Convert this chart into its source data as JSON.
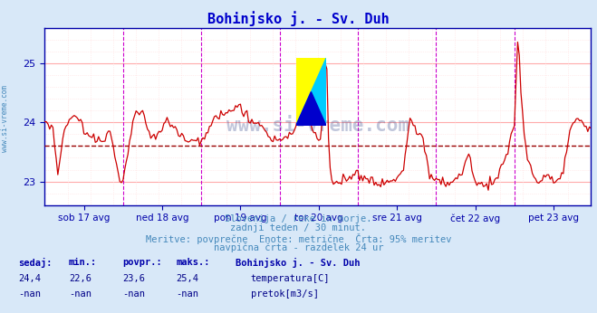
{
  "title": "Bohinjsko j. - Sv. Duh",
  "bg_color": "#d8e8f8",
  "plot_bg_color": "#ffffff",
  "line_color": "#cc0000",
  "avg_line_color": "#990000",
  "avg_line_value": 23.6,
  "grid_color_major": "#ffaaaa",
  "grid_color_minor": "#ffdddd",
  "vline_color_day": "#cc00cc",
  "ylim": [
    22.6,
    25.6
  ],
  "yticks": [
    23,
    24,
    25
  ],
  "title_color": "#0000cc",
  "axis_color": "#0000aa",
  "tick_color": "#0000aa",
  "bottom_text_color": "#4488bb",
  "bottom_text1": "Slovenija / reke in morje.",
  "bottom_text2": "zadnji teden / 30 minut.",
  "bottom_text3": "Meritve: povprečne  Enote: metrične  Črta: 95% meritev",
  "bottom_text4": "navpična črta - razdelek 24 ur",
  "stat_label_color": "#0000aa",
  "stat_value_color": "#000088",
  "stat_headers": [
    "sedaj:",
    "min.:",
    "povpr.:",
    "maks.:"
  ],
  "stat_values_temp": [
    "24,4",
    "22,6",
    "23,6",
    "25,4"
  ],
  "stat_values_flow": [
    "-nan",
    "-nan",
    "-nan",
    "-nan"
  ],
  "legend_title": "Bohinjsko j. - Sv. Duh",
  "legend_temp": "temperatura[C]",
  "legend_flow": "pretok[m3/s]",
  "legend_temp_color": "#cc0000",
  "legend_flow_color": "#00aa00",
  "num_points": 336,
  "day_vlines": [
    48,
    96,
    144,
    192,
    240,
    288
  ],
  "xtick_positions": [
    24,
    72,
    120,
    168,
    216,
    264,
    312
  ],
  "xtick_labels": [
    "sob 17 avg",
    "ned 18 avg",
    "pon 19 avg",
    "tor 20 avg",
    "sre 21 avg",
    "čet 22 avg",
    "pet 23 avg"
  ],
  "left_label": "www.si-vreme.com"
}
